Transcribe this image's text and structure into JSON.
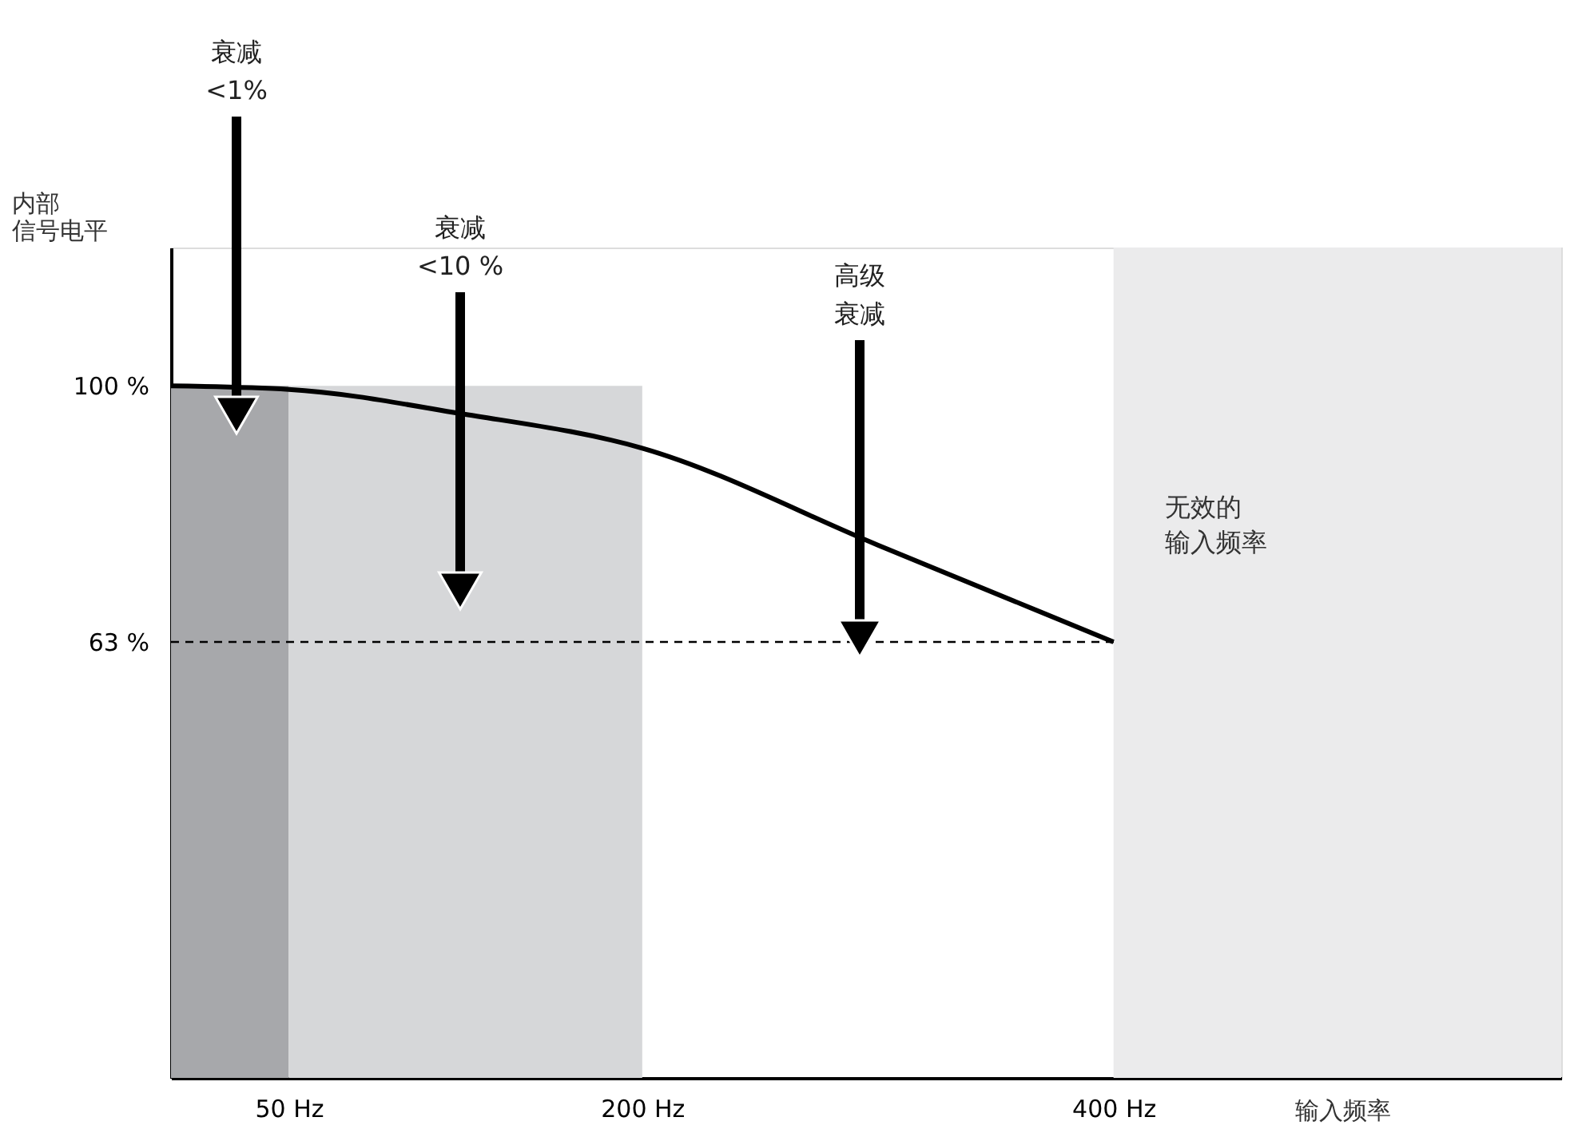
{
  "chart_data": {
    "type": "line",
    "xlabel": "输入频率",
    "ylabel": "内部信号电平",
    "x": [
      0,
      50,
      123,
      200,
      300,
      400
    ],
    "series": [
      {
        "color": "#000000",
        "values": [
          100,
          99.5,
          96,
          91,
          77,
          63
        ]
      }
    ],
    "xlim": [
      0,
      590
    ],
    "xticks": [
      {
        "value": 50,
        "label": "50 Hz"
      },
      {
        "value": 200,
        "label": "200 Hz"
      },
      {
        "value": 400,
        "label": "400 Hz"
      }
    ],
    "ylim": [
      0,
      120
    ],
    "yticks": [
      {
        "value": 63,
        "label": "63 %"
      },
      {
        "value": 100,
        "label": "100 %"
      }
    ],
    "bands": [
      {
        "axis": "x",
        "from": 0,
        "to": 50,
        "color": "#a7a8ab"
      },
      {
        "axis": "x",
        "from": 50,
        "to": 200,
        "color": "#d6d7d9"
      },
      {
        "axis": "x",
        "from": 400,
        "to": 590,
        "color": "#ebebec",
        "label": "无效的输入频率"
      }
    ],
    "ref_lines": [
      {
        "axis": "y",
        "value": 63,
        "color": "#000000",
        "line_style": "dashed"
      }
    ],
    "annotations": [
      "衰减\n<1%",
      "衰减\n<10 %",
      "高级衰减"
    ],
    "grid": false,
    "marker": "none",
    "line_style": "solid"
  }
}
